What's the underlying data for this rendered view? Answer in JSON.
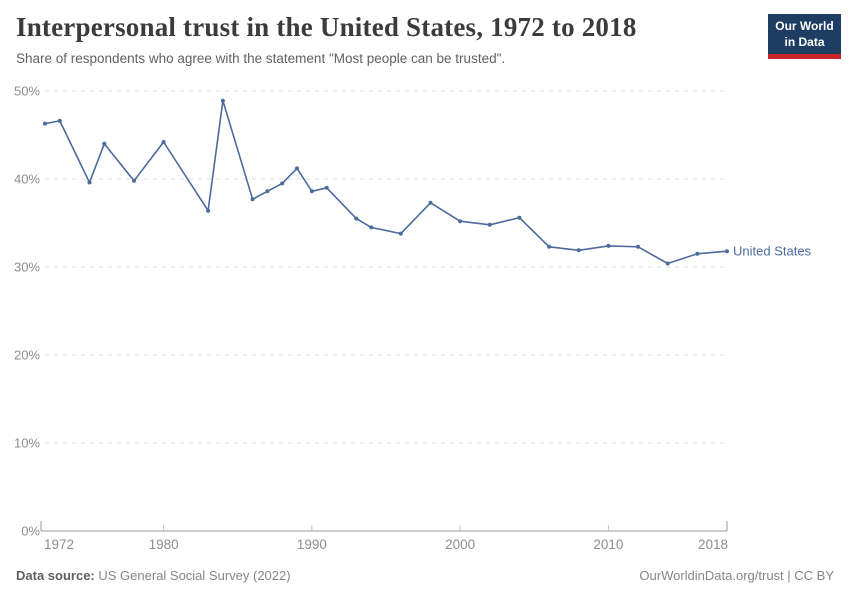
{
  "header": {
    "title": "Interpersonal trust in the United States, 1972 to 2018",
    "subtitle": "Share of respondents who agree with the statement \"Most people can be trusted\".",
    "logo": {
      "line1": "Our World",
      "line2": "in Data"
    }
  },
  "chart_data": {
    "type": "line",
    "title": "Interpersonal trust in the United States, 1972 to 2018",
    "xlabel": "",
    "ylabel": "",
    "xlim": [
      1972,
      2018
    ],
    "ylim": [
      0,
      50
    ],
    "x_ticks": [
      1972,
      1980,
      1990,
      2000,
      2010,
      2018
    ],
    "y_ticks": [
      0,
      10,
      20,
      30,
      40,
      50
    ],
    "y_tick_suffix": "%",
    "grid": "horizontal-dashed",
    "legend_position": "label-at-line-end",
    "series": [
      {
        "name": "United States",
        "color": "#4C6A9D",
        "points": [
          {
            "year": 1972,
            "value": 46.3
          },
          {
            "year": 1973,
            "value": 46.6
          },
          {
            "year": 1975,
            "value": 39.6
          },
          {
            "year": 1976,
            "value": 44.0
          },
          {
            "year": 1978,
            "value": 39.8
          },
          {
            "year": 1980,
            "value": 44.2
          },
          {
            "year": 1983,
            "value": 36.4
          },
          {
            "year": 1984,
            "value": 48.9
          },
          {
            "year": 1986,
            "value": 37.7
          },
          {
            "year": 1987,
            "value": 38.6
          },
          {
            "year": 1988,
            "value": 39.5
          },
          {
            "year": 1989,
            "value": 41.2
          },
          {
            "year": 1990,
            "value": 38.6
          },
          {
            "year": 1991,
            "value": 39.0
          },
          {
            "year": 1993,
            "value": 35.5
          },
          {
            "year": 1994,
            "value": 34.5
          },
          {
            "year": 1996,
            "value": 33.8
          },
          {
            "year": 1998,
            "value": 37.3
          },
          {
            "year": 2000,
            "value": 35.2
          },
          {
            "year": 2002,
            "value": 34.8
          },
          {
            "year": 2004,
            "value": 35.6
          },
          {
            "year": 2006,
            "value": 32.3
          },
          {
            "year": 2008,
            "value": 31.9
          },
          {
            "year": 2010,
            "value": 32.4
          },
          {
            "year": 2012,
            "value": 32.3
          },
          {
            "year": 2014,
            "value": 30.4
          },
          {
            "year": 2016,
            "value": 31.5
          },
          {
            "year": 2018,
            "value": 31.8
          }
        ]
      }
    ]
  },
  "colors": {
    "line": "#4C6A9D",
    "grid": "#dddddd",
    "axis": "#9a9a9a",
    "tick": "#c2c2c2",
    "tick_label": "#8e8e8e",
    "series_label": "#4C6A9D"
  },
  "footer": {
    "source_label": "Data source:",
    "source_text": " US General Social Survey (2022)",
    "credit": "OurWorldinData.org/trust | CC BY"
  }
}
